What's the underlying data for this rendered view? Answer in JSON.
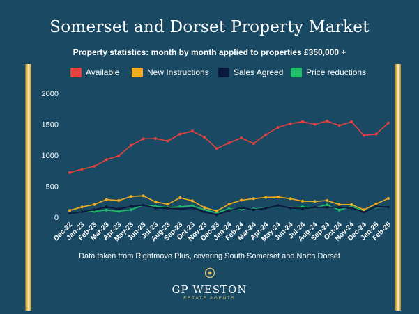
{
  "header": {
    "title": "Somerset and Dorset Property Market",
    "subtitle": "Property statistics: month by month applied to properties £350,000 +"
  },
  "footer": {
    "note": "Data taken from Rightmove Plus, covering South Somerset and North Dorset",
    "logo_name": "GP WESTON",
    "logo_sub": "ESTATE AGENTS"
  },
  "colors": {
    "background": "#1a4a63",
    "gold": "#d9c06b"
  },
  "chart_data": {
    "type": "line",
    "title": "",
    "xlabel": "",
    "ylabel": "",
    "ylim": [
      0,
      2000
    ],
    "yticks": [
      0,
      500,
      1000,
      1500,
      2000
    ],
    "grid": false,
    "legend_position": "top",
    "categories": [
      "Dec-22",
      "Jan-23",
      "Feb-23",
      "Mar-23",
      "Apr-23",
      "May-23",
      "Jun-23",
      "Jul-23",
      "Aug-23",
      "Sep-23",
      "Oct-23",
      "Nov-23",
      "Dec-23",
      "Jan-24",
      "Feb-24",
      "Mar-24",
      "Apr-24",
      "May-24",
      "Jun-24",
      "Jul-24",
      "Aug-24",
      "Sep-24",
      "Oct-24",
      "Nov-24",
      "Dec-24",
      "Jan-25",
      "Feb-25"
    ],
    "series": [
      {
        "name": "Available",
        "color": "#e8403c",
        "values": [
          720,
          775,
          820,
          930,
          990,
          1160,
          1265,
          1270,
          1230,
          1340,
          1390,
          1290,
          1110,
          1200,
          1280,
          1190,
          1330,
          1450,
          1510,
          1540,
          1500,
          1550,
          1480,
          1540,
          1320,
          1340,
          1520
        ]
      },
      {
        "name": "New Instructions",
        "color": "#f2ad1d",
        "values": [
          110,
          165,
          205,
          285,
          270,
          335,
          345,
          250,
          210,
          315,
          265,
          155,
          100,
          210,
          275,
          300,
          320,
          325,
          300,
          260,
          255,
          270,
          205,
          205,
          120,
          215,
          305
        ]
      },
      {
        "name": "Sales Agreed",
        "color": "#0b1a3c",
        "values": [
          60,
          90,
          120,
          165,
          130,
          175,
          195,
          150,
          145,
          130,
          150,
          85,
          40,
          110,
          150,
          120,
          145,
          190,
          150,
          140,
          160,
          160,
          160,
          150,
          85,
          170,
          165
        ]
      },
      {
        "name": "Price reductions",
        "color": "#1fbf6a",
        "values": [
          55,
          95,
          95,
          115,
          95,
          120,
          195,
          180,
          155,
          170,
          185,
          120,
          70,
          135,
          130,
          135,
          150,
          185,
          155,
          165,
          155,
          200,
          115,
          175,
          100,
          160,
          170
        ]
      }
    ]
  }
}
